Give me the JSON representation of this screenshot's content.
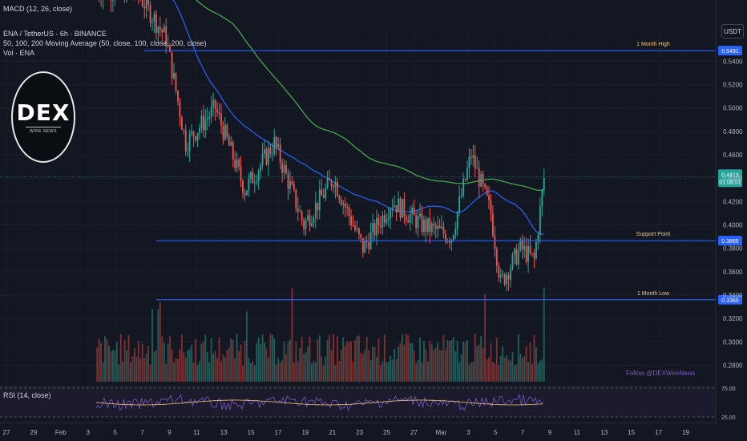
{
  "header": {
    "macd_label": "MACD (12, 26, close)",
    "symbol_title": "ENA / TetherUS · 6h · BINANCE",
    "ma_label": "50, 100, 200 Moving Average (50, close, 100, close, 200, close)",
    "vol_label": "Vol · ENA",
    "currency_button": "USDT"
  },
  "logo": {
    "main": "DEX",
    "sub": "WIRE NEWS"
  },
  "watermark": "Follow @DEXWireNews",
  "rsi_label": "RSI (14, close)",
  "colors": {
    "up": "#26a69a",
    "down": "#ef5350",
    "ma100": "#2962ff",
    "ma200": "#4caf50",
    "hline": "#2962ff",
    "annotation": "#f0c674",
    "rsi": "#7e57c2",
    "rsi_ma": "#f0c674"
  },
  "chart_data": {
    "type": "candlestick",
    "price_axis": {
      "ticks": [
        "0.5400",
        "0.5200",
        "0.5000",
        "0.4800",
        "0.4600",
        "0.4400",
        "0.4200",
        "0.4000",
        "0.3800",
        "0.3600",
        "0.3400",
        "0.3200",
        "0.3000",
        "0.2800"
      ],
      "ylim": [
        0.27,
        0.565
      ]
    },
    "x_ticks": [
      "27",
      "29",
      "Feb",
      "3",
      "5",
      "7",
      "9",
      "11",
      "13",
      "15",
      "17",
      "19",
      "21",
      "23",
      "25",
      "27",
      "Mar",
      "3",
      "5",
      "7",
      "9",
      "11",
      "13",
      "15",
      "17",
      "19"
    ],
    "levels": [
      {
        "label": "1 Month High",
        "value": "0.5491"
      },
      {
        "label": "Support Point",
        "value": "0.3865"
      },
      {
        "label": "1 Month Low",
        "value": "0.3360"
      }
    ],
    "current_price": {
      "value": "0.4413",
      "countdown": "01:08:51"
    },
    "rsi_axis": {
      "ticks": [
        "75.00",
        "25.00"
      ]
    }
  }
}
